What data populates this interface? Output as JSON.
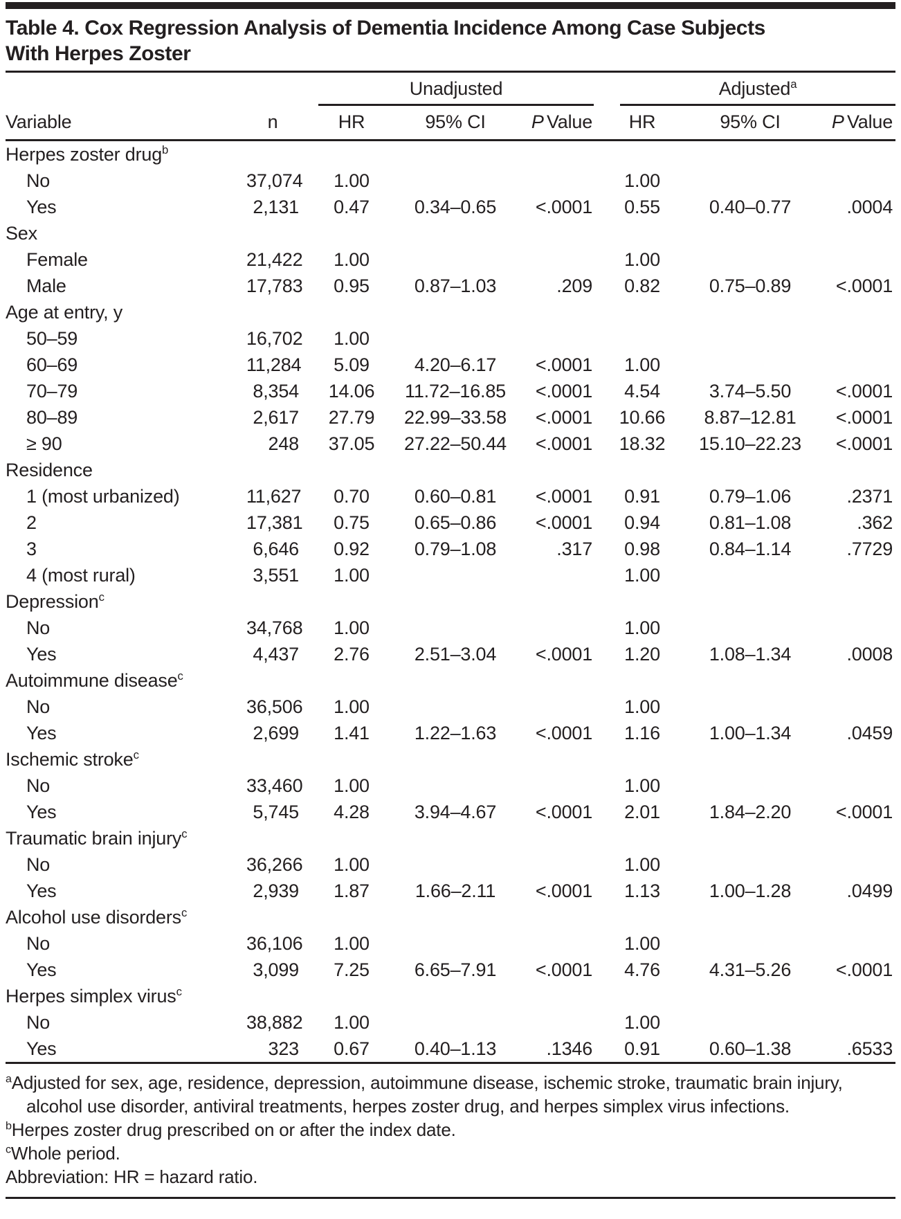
{
  "colors": {
    "text": "#231f20",
    "rule": "#231f20",
    "background": "#ffffff"
  },
  "title_line1": "Table 4. Cox Regression Analysis of Dementia Incidence Among Case Subjects",
  "title_line2": "With Herpes Zoster",
  "table": {
    "group_headers": {
      "unadjusted": "Unadjusted",
      "adjusted": "Adjusted",
      "adjusted_sup": "a"
    },
    "columns": {
      "variable": "Variable",
      "n": "n",
      "hr": "HR",
      "ci": "95% CI",
      "p_italic": "P",
      "p_rest": "Value"
    },
    "rows": [
      {
        "label": "Herpes zoster drug",
        "sup": "b",
        "indent": false,
        "n": "",
        "u_hr": "",
        "u_ci": "",
        "u_p": "",
        "a_hr": "",
        "a_ci": "",
        "a_p": ""
      },
      {
        "label": "No",
        "sup": "",
        "indent": true,
        "n": "37,074",
        "u_hr": "1.00",
        "u_ci": "",
        "u_p": "",
        "a_hr": "1.00",
        "a_ci": "",
        "a_p": ""
      },
      {
        "label": "Yes",
        "sup": "",
        "indent": true,
        "n": "2,131",
        "u_hr": "0.47",
        "u_ci": "0.34–0.65",
        "u_p": "<.0001",
        "a_hr": "0.55",
        "a_ci": "0.40–0.77",
        "a_p": ".0004"
      },
      {
        "label": "Sex",
        "sup": "",
        "indent": false,
        "n": "",
        "u_hr": "",
        "u_ci": "",
        "u_p": "",
        "a_hr": "",
        "a_ci": "",
        "a_p": ""
      },
      {
        "label": "Female",
        "sup": "",
        "indent": true,
        "n": "21,422",
        "u_hr": "1.00",
        "u_ci": "",
        "u_p": "",
        "a_hr": "1.00",
        "a_ci": "",
        "a_p": ""
      },
      {
        "label": "Male",
        "sup": "",
        "indent": true,
        "n": "17,783",
        "u_hr": "0.95",
        "u_ci": "0.87–1.03",
        "u_p": ".209",
        "a_hr": "0.82",
        "a_ci": "0.75–0.89",
        "a_p": "<.0001"
      },
      {
        "label": "Age at entry, y",
        "sup": "",
        "indent": false,
        "n": "",
        "u_hr": "",
        "u_ci": "",
        "u_p": "",
        "a_hr": "",
        "a_ci": "",
        "a_p": ""
      },
      {
        "label": "50–59",
        "sup": "",
        "indent": true,
        "n": "16,702",
        "u_hr": "1.00",
        "u_ci": "",
        "u_p": "",
        "a_hr": "",
        "a_ci": "",
        "a_p": ""
      },
      {
        "label": "60–69",
        "sup": "",
        "indent": true,
        "n": "11,284",
        "u_hr": "5.09",
        "u_ci": "4.20–6.17",
        "u_p": "<.0001",
        "a_hr": "1.00",
        "a_ci": "",
        "a_p": ""
      },
      {
        "label": "70–79",
        "sup": "",
        "indent": true,
        "n": "8,354",
        "u_hr": "14.06",
        "u_ci": "11.72–16.85",
        "u_p": "<.0001",
        "a_hr": "4.54",
        "a_ci": "3.74–5.50",
        "a_p": "<.0001"
      },
      {
        "label": "80–89",
        "sup": "",
        "indent": true,
        "n": "2,617",
        "u_hr": "27.79",
        "u_ci": "22.99–33.58",
        "u_p": "<.0001",
        "a_hr": "10.66",
        "a_ci": "8.87–12.81",
        "a_p": "<.0001"
      },
      {
        "label": "≥ 90",
        "sup": "",
        "indent": true,
        "n": "248",
        "u_hr": "37.05",
        "u_ci": "27.22–50.44",
        "u_p": "<.0001",
        "a_hr": "18.32",
        "a_ci": "15.10–22.23",
        "a_p": "<.0001"
      },
      {
        "label": "Residence",
        "sup": "",
        "indent": false,
        "n": "",
        "u_hr": "",
        "u_ci": "",
        "u_p": "",
        "a_hr": "",
        "a_ci": "",
        "a_p": ""
      },
      {
        "label": "1 (most urbanized)",
        "sup": "",
        "indent": true,
        "n": "11,627",
        "u_hr": "0.70",
        "u_ci": "0.60–0.81",
        "u_p": "<.0001",
        "a_hr": "0.91",
        "a_ci": "0.79–1.06",
        "a_p": ".2371"
      },
      {
        "label": "2",
        "sup": "",
        "indent": true,
        "n": "17,381",
        "u_hr": "0.75",
        "u_ci": "0.65–0.86",
        "u_p": "<.0001",
        "a_hr": "0.94",
        "a_ci": "0.81–1.08",
        "a_p": ".362"
      },
      {
        "label": "3",
        "sup": "",
        "indent": true,
        "n": "6,646",
        "u_hr": "0.92",
        "u_ci": "0.79–1.08",
        "u_p": ".317",
        "a_hr": "0.98",
        "a_ci": "0.84–1.14",
        "a_p": ".7729"
      },
      {
        "label": "4 (most rural)",
        "sup": "",
        "indent": true,
        "n": "3,551",
        "u_hr": "1.00",
        "u_ci": "",
        "u_p": "",
        "a_hr": "1.00",
        "a_ci": "",
        "a_p": ""
      },
      {
        "label": "Depression",
        "sup": "c",
        "indent": false,
        "n": "",
        "u_hr": "",
        "u_ci": "",
        "u_p": "",
        "a_hr": "",
        "a_ci": "",
        "a_p": ""
      },
      {
        "label": "No",
        "sup": "",
        "indent": true,
        "n": "34,768",
        "u_hr": "1.00",
        "u_ci": "",
        "u_p": "",
        "a_hr": "1.00",
        "a_ci": "",
        "a_p": ""
      },
      {
        "label": "Yes",
        "sup": "",
        "indent": true,
        "n": "4,437",
        "u_hr": "2.76",
        "u_ci": "2.51–3.04",
        "u_p": "<.0001",
        "a_hr": "1.20",
        "a_ci": "1.08–1.34",
        "a_p": ".0008"
      },
      {
        "label": "Autoimmune disease",
        "sup": "c",
        "indent": false,
        "n": "",
        "u_hr": "",
        "u_ci": "",
        "u_p": "",
        "a_hr": "",
        "a_ci": "",
        "a_p": ""
      },
      {
        "label": "No",
        "sup": "",
        "indent": true,
        "n": "36,506",
        "u_hr": "1.00",
        "u_ci": "",
        "u_p": "",
        "a_hr": "1.00",
        "a_ci": "",
        "a_p": ""
      },
      {
        "label": "Yes",
        "sup": "",
        "indent": true,
        "n": "2,699",
        "u_hr": "1.41",
        "u_ci": "1.22–1.63",
        "u_p": "<.0001",
        "a_hr": "1.16",
        "a_ci": "1.00–1.34",
        "a_p": ".0459"
      },
      {
        "label": "Ischemic stroke",
        "sup": "c",
        "indent": false,
        "n": "",
        "u_hr": "",
        "u_ci": "",
        "u_p": "",
        "a_hr": "",
        "a_ci": "",
        "a_p": ""
      },
      {
        "label": "No",
        "sup": "",
        "indent": true,
        "n": "33,460",
        "u_hr": "1.00",
        "u_ci": "",
        "u_p": "",
        "a_hr": "1.00",
        "a_ci": "",
        "a_p": ""
      },
      {
        "label": "Yes",
        "sup": "",
        "indent": true,
        "n": "5,745",
        "u_hr": "4.28",
        "u_ci": "3.94–4.67",
        "u_p": "<.0001",
        "a_hr": "2.01",
        "a_ci": "1.84–2.20",
        "a_p": "<.0001"
      },
      {
        "label": "Traumatic brain injury",
        "sup": "c",
        "indent": false,
        "n": "",
        "u_hr": "",
        "u_ci": "",
        "u_p": "",
        "a_hr": "",
        "a_ci": "",
        "a_p": ""
      },
      {
        "label": "No",
        "sup": "",
        "indent": true,
        "n": "36,266",
        "u_hr": "1.00",
        "u_ci": "",
        "u_p": "",
        "a_hr": "1.00",
        "a_ci": "",
        "a_p": ""
      },
      {
        "label": "Yes",
        "sup": "",
        "indent": true,
        "n": "2,939",
        "u_hr": "1.87",
        "u_ci": "1.66–2.11",
        "u_p": "<.0001",
        "a_hr": "1.13",
        "a_ci": "1.00–1.28",
        "a_p": ".0499"
      },
      {
        "label": "Alcohol use disorders",
        "sup": "c",
        "indent": false,
        "n": "",
        "u_hr": "",
        "u_ci": "",
        "u_p": "",
        "a_hr": "",
        "a_ci": "",
        "a_p": ""
      },
      {
        "label": "No",
        "sup": "",
        "indent": true,
        "n": "36,106",
        "u_hr": "1.00",
        "u_ci": "",
        "u_p": "",
        "a_hr": "1.00",
        "a_ci": "",
        "a_p": ""
      },
      {
        "label": "Yes",
        "sup": "",
        "indent": true,
        "n": "3,099",
        "u_hr": "7.25",
        "u_ci": "6.65–7.91",
        "u_p": "<.0001",
        "a_hr": "4.76",
        "a_ci": "4.31–5.26",
        "a_p": "<.0001"
      },
      {
        "label": "Herpes simplex virus",
        "sup": "c",
        "indent": false,
        "n": "",
        "u_hr": "",
        "u_ci": "",
        "u_p": "",
        "a_hr": "",
        "a_ci": "",
        "a_p": ""
      },
      {
        "label": "No",
        "sup": "",
        "indent": true,
        "n": "38,882",
        "u_hr": "1.00",
        "u_ci": "",
        "u_p": "",
        "a_hr": "1.00",
        "a_ci": "",
        "a_p": ""
      },
      {
        "label": "Yes",
        "sup": "",
        "indent": true,
        "n": "323",
        "u_hr": "0.67",
        "u_ci": "0.40–1.13",
        "u_p": ".1346",
        "a_hr": "0.91",
        "a_ci": "0.60–1.38",
        "a_p": ".6533"
      }
    ]
  },
  "footnotes": [
    {
      "sup": "a",
      "text": "Adjusted for sex, age, residence, depression, autoimmune disease, ischemic stroke, traumatic brain injury, alcohol use disorder, antiviral treatments, herpes zoster drug, and herpes simplex virus infections."
    },
    {
      "sup": "b",
      "text": "Herpes zoster drug prescribed on or after the index date."
    },
    {
      "sup": "c",
      "text": "Whole period."
    },
    {
      "sup": "",
      "text": "Abbreviation: HR = hazard ratio."
    }
  ]
}
